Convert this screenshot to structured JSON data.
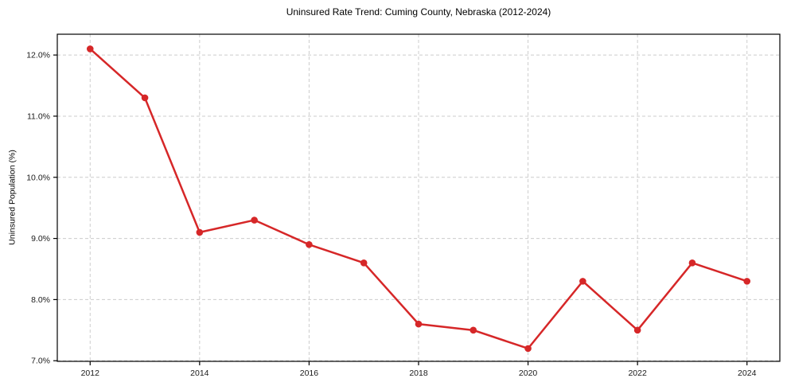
{
  "chart_data": {
    "type": "line",
    "title": "Uninsured Rate Trend: Cuming County, Nebraska (2012-2024)",
    "xlabel": "",
    "ylabel": "Uninsured Population (%)",
    "x": [
      2012,
      2013,
      2014,
      2015,
      2016,
      2017,
      2018,
      2019,
      2020,
      2021,
      2022,
      2023,
      2024
    ],
    "values": [
      12.1,
      11.3,
      9.1,
      9.3,
      8.9,
      8.6,
      7.6,
      7.5,
      7.2,
      8.3,
      7.5,
      8.6,
      8.3
    ],
    "x_ticks": [
      2012,
      2014,
      2016,
      2018,
      2020,
      2022,
      2024
    ],
    "x_tick_labels": [
      "2012",
      "2014",
      "2016",
      "2018",
      "2020",
      "2022",
      "2024"
    ],
    "y_ticks": [
      7,
      8,
      9,
      10,
      11,
      12
    ],
    "y_tick_labels": [
      "7.0%",
      "8.0%",
      "9.0%",
      "10.0%",
      "11.0%",
      "12.0%"
    ],
    "xlim": [
      2011.4,
      2024.6
    ],
    "ylim": [
      6.99,
      12.34
    ],
    "grid": true,
    "grid_style": "dashed",
    "legend": false,
    "line_color": "#d62728",
    "grid_color": "#cccccc",
    "axis_color": "#000000",
    "tick_label_color": "#1a1a1a",
    "marker": "circle"
  }
}
